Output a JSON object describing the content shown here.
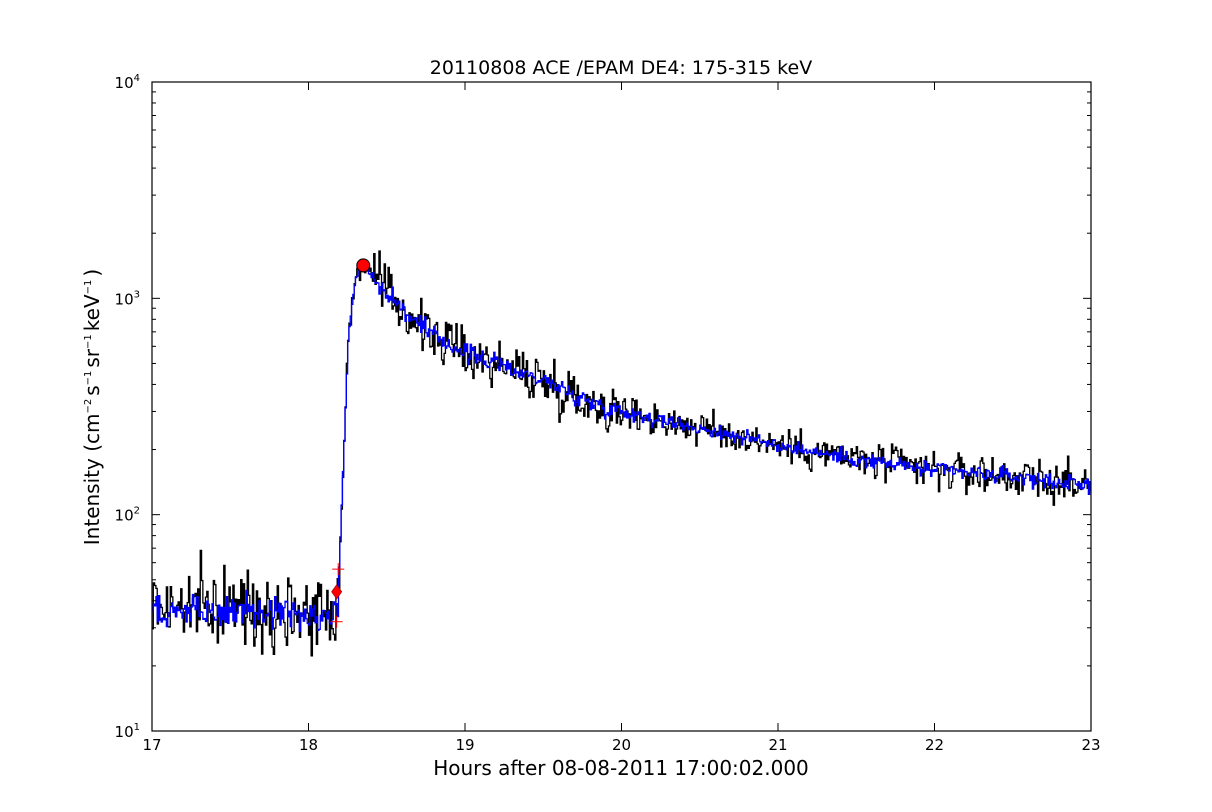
{
  "chart_data": {
    "type": "line",
    "title": "20110808 ACE /EPAM DE4: 175-315 keV",
    "xlabel": "Hours after 08-08-2011 17:00:02.000",
    "ylabel": "Intensity (cm⁻² s⁻¹ sr⁻¹ keV⁻¹)",
    "ylabel_parts": {
      "prefix": "Intensity (cm",
      "exp1": "−2",
      "s": "s",
      "exp2": "−1",
      "sr": "sr",
      "exp3": "−1",
      "kev": "keV",
      "exp4": "−1",
      "suffix": ")"
    },
    "x_scale": "linear",
    "y_scale": "log",
    "xlim": [
      17,
      23
    ],
    "ylim": [
      10,
      10000
    ],
    "x_ticks": [
      "17",
      "18",
      "19",
      "20",
      "21",
      "22",
      "23"
    ],
    "y_ticks": [
      {
        "base": "10",
        "exp": "1"
      },
      {
        "base": "10",
        "exp": "2"
      },
      {
        "base": "10",
        "exp": "3"
      },
      {
        "base": "10",
        "exp": "4"
      }
    ],
    "grid": false,
    "legend": "none",
    "series": [
      {
        "style": "steps",
        "color": "#000000",
        "anchors": [
          [
            17.0,
            38
          ],
          [
            18.18,
            36
          ],
          [
            18.2,
            80
          ],
          [
            18.22,
            180
          ],
          [
            18.25,
            650
          ],
          [
            18.3,
            1300
          ],
          [
            18.35,
            1420
          ],
          [
            18.5,
            1050
          ],
          [
            18.75,
            700
          ],
          [
            19.0,
            560
          ],
          [
            19.3,
            470
          ],
          [
            19.5,
            420
          ],
          [
            19.75,
            340
          ],
          [
            20.0,
            300
          ],
          [
            20.5,
            250
          ],
          [
            21.0,
            210
          ],
          [
            21.5,
            180
          ],
          [
            22.0,
            160
          ],
          [
            22.5,
            150
          ],
          [
            23.0,
            135
          ]
        ],
        "noise": [
          0.16,
          0.11,
          0.08,
          0.09
        ]
      },
      {
        "style": "steps",
        "color": "#0000ff",
        "anchors": [
          [
            17.0,
            36
          ],
          [
            18.18,
            35
          ],
          [
            18.2,
            80
          ],
          [
            18.22,
            180
          ],
          [
            18.25,
            650
          ],
          [
            18.3,
            1300
          ],
          [
            18.35,
            1420
          ],
          [
            18.5,
            1050
          ],
          [
            18.75,
            700
          ],
          [
            19.0,
            560
          ],
          [
            19.3,
            470
          ],
          [
            19.5,
            420
          ],
          [
            19.75,
            340
          ],
          [
            20.0,
            300
          ],
          [
            20.5,
            250
          ],
          [
            21.0,
            210
          ],
          [
            21.5,
            180
          ],
          [
            22.0,
            160
          ],
          [
            22.5,
            150
          ],
          [
            23.0,
            135
          ]
        ],
        "noise": [
          0.07,
          0.04,
          0.03,
          0.035
        ]
      }
    ],
    "markers": [
      {
        "kind": "circle",
        "x": 18.35,
        "y": 1420,
        "color": "#ff0000"
      },
      {
        "kind": "diamond",
        "x": 18.18,
        "y": 44,
        "color": "#ff0000"
      },
      {
        "kind": "plus",
        "x": 18.19,
        "y": 56,
        "color": "#ff0000"
      },
      {
        "kind": "plus",
        "x": 18.18,
        "y": 32,
        "color": "#ff0000"
      }
    ]
  }
}
